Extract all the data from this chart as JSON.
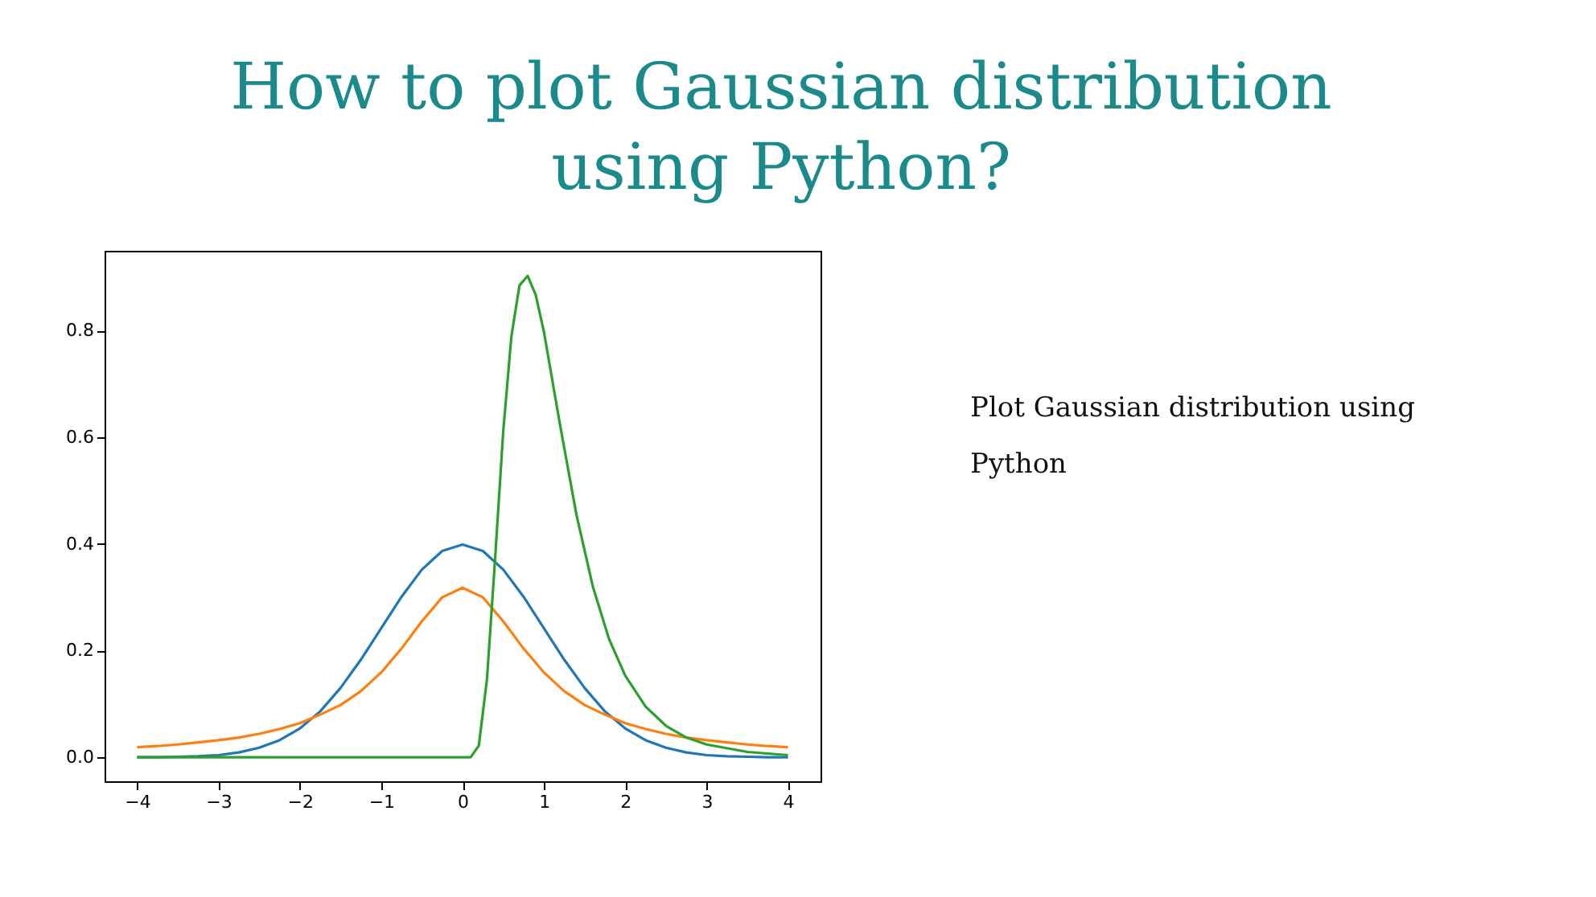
{
  "chart_data": {
    "type": "line",
    "title": "How to plot Gaussian distribution using Python?",
    "annotations": [
      "Plot Gaussian distribution using Python"
    ],
    "xlim": [
      -4.4,
      4.4
    ],
    "ylim": [
      -0.045,
      0.95
    ],
    "xticks": [
      {
        "value": -4,
        "label": "−4"
      },
      {
        "value": -3,
        "label": "−3"
      },
      {
        "value": -2,
        "label": "−2"
      },
      {
        "value": -1,
        "label": "−1"
      },
      0,
      1,
      2,
      3,
      4
    ],
    "yticks": [
      {
        "value": 0,
        "label": "0.0"
      },
      {
        "value": 0.2,
        "label": "0.2"
      },
      {
        "value": 0.4,
        "label": "0.4"
      },
      {
        "value": 0.6,
        "label": "0.6"
      },
      {
        "value": 0.8,
        "label": "0.8"
      }
    ],
    "grid": false,
    "legend": false,
    "marker": "none",
    "line_style": "solid",
    "series": [
      {
        "color": "#1f77b4",
        "x": [
          -4,
          -3.75,
          -3.5,
          -3.25,
          -3,
          -2.75,
          -2.5,
          -2.25,
          -2,
          -1.75,
          -1.5,
          -1.25,
          -1,
          -0.75,
          -0.5,
          -0.25,
          0,
          0.25,
          0.5,
          0.75,
          1,
          1.25,
          1.5,
          1.75,
          2,
          2.25,
          2.5,
          2.75,
          3,
          3.25,
          3.5,
          3.75,
          4
        ],
        "values": [
          0.0,
          0.0,
          0.001,
          0.002,
          0.004,
          0.009,
          0.018,
          0.032,
          0.054,
          0.086,
          0.13,
          0.183,
          0.242,
          0.301,
          0.352,
          0.387,
          0.399,
          0.387,
          0.352,
          0.301,
          0.242,
          0.183,
          0.13,
          0.086,
          0.054,
          0.032,
          0.018,
          0.009,
          0.004,
          0.002,
          0.001,
          0.0,
          0.0
        ]
      },
      {
        "color": "#ff7f0e",
        "x": [
          -4,
          -3.75,
          -3.5,
          -3.25,
          -3,
          -2.75,
          -2.5,
          -2.25,
          -2,
          -1.75,
          -1.5,
          -1.25,
          -1,
          -0.75,
          -0.5,
          -0.25,
          0,
          0.25,
          0.5,
          0.75,
          1,
          1.25,
          1.5,
          1.75,
          2,
          2.25,
          2.5,
          2.75,
          3,
          3.25,
          3.5,
          3.75,
          4
        ],
        "values": [
          0.019,
          0.021,
          0.024,
          0.028,
          0.032,
          0.037,
          0.044,
          0.053,
          0.064,
          0.08,
          0.098,
          0.124,
          0.159,
          0.204,
          0.255,
          0.3,
          0.318,
          0.3,
          0.255,
          0.204,
          0.159,
          0.124,
          0.098,
          0.08,
          0.064,
          0.053,
          0.044,
          0.037,
          0.032,
          0.028,
          0.024,
          0.021,
          0.019
        ]
      },
      {
        "color": "#2ca02c",
        "x": [
          -4,
          0,
          0.1,
          0.2,
          0.3,
          0.4,
          0.5,
          0.6,
          0.7,
          0.8,
          0.9,
          1.0,
          1.2,
          1.4,
          1.6,
          1.8,
          2.0,
          2.25,
          2.5,
          2.75,
          3,
          3.5,
          4
        ],
        "values": [
          0.0,
          0.0,
          0.0,
          0.022,
          0.146,
          0.372,
          0.611,
          0.789,
          0.885,
          0.903,
          0.867,
          0.798,
          0.622,
          0.455,
          0.321,
          0.222,
          0.153,
          0.095,
          0.059,
          0.037,
          0.024,
          0.01,
          0.004
        ]
      }
    ]
  }
}
